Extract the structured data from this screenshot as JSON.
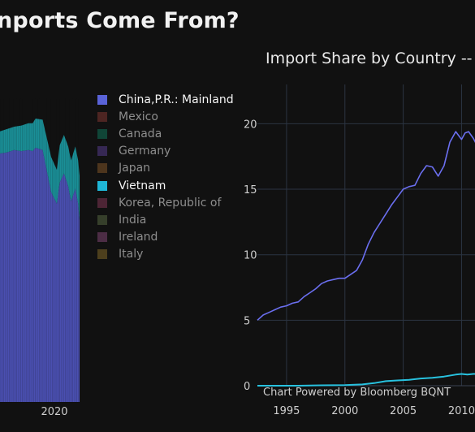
{
  "header": {
    "title": "nports Come From?",
    "left_fragment": "",
    "right_chart_title": "Import Share by Country -- L"
  },
  "legend": {
    "items": [
      {
        "label": "China,P.R.: Mainland",
        "color": "#5a63d8",
        "active": true
      },
      {
        "label": "Mexico",
        "color": "#8a3a33",
        "active": false
      },
      {
        "label": "Canada",
        "color": "#0f7a5e",
        "active": false
      },
      {
        "label": "Germany",
        "color": "#5b3f98",
        "active": false
      },
      {
        "label": "Japan",
        "color": "#8a5a2a",
        "active": false
      },
      {
        "label": "Vietnam",
        "color": "#1fb6d6",
        "active": true
      },
      {
        "label": "Korea, Republic of",
        "color": "#8a3a5a",
        "active": false
      },
      {
        "label": "India",
        "color": "#5c6e45",
        "active": false
      },
      {
        "label": "Ireland",
        "color": "#874a7a",
        "active": false
      },
      {
        "label": "Italy",
        "color": "#8a6e2a",
        "active": false
      }
    ]
  },
  "footer": {
    "credit": "Chart Powered by Bloomberg BQNT"
  },
  "chart_data": [
    {
      "type": "area",
      "stacking": "stacked",
      "x_ticks": [
        "2020"
      ],
      "series": [
        {
          "name": "China,P.R.: Mainland",
          "color": "#4a4fb0",
          "x": [
            2016.0,
            2016.5,
            2017.0,
            2017.5,
            2018.0,
            2018.3,
            2018.5,
            2019.0,
            2019.3,
            2019.6,
            2020.0,
            2020.2,
            2020.5,
            2020.8,
            2021.0,
            2021.3,
            2021.5,
            2021.6
          ],
          "values": [
            21.3,
            21.4,
            21.6,
            21.5,
            21.6,
            21.5,
            21.8,
            21.6,
            19.8,
            18.0,
            17.0,
            18.8,
            19.6,
            18.5,
            17.2,
            18.3,
            17.0,
            15.6
          ]
        },
        {
          "name": "Vietnam",
          "color": "#1a8f97",
          "x": [
            2016.0,
            2016.5,
            2017.0,
            2017.5,
            2018.0,
            2018.3,
            2018.5,
            2019.0,
            2019.3,
            2019.6,
            2020.0,
            2020.2,
            2020.5,
            2020.8,
            2021.0,
            2021.3,
            2021.5,
            2021.6
          ],
          "values": [
            1.9,
            2.0,
            2.0,
            2.2,
            2.3,
            2.4,
            2.5,
            2.6,
            2.8,
            3.0,
            2.9,
            3.2,
            3.3,
            3.4,
            3.5,
            3.6,
            3.7,
            3.8
          ]
        }
      ]
    },
    {
      "type": "line",
      "title": "Import Share by Country -- L",
      "xlim": [
        1992.5,
        2011.5
      ],
      "ylim": [
        0,
        23
      ],
      "x_ticks": [
        1995,
        2000,
        2005,
        2010
      ],
      "y_ticks": [
        0,
        5,
        10,
        15,
        20
      ],
      "grid": true,
      "series": [
        {
          "name": "China,P.R.: Mainland",
          "color": "#6b6ff0",
          "x": [
            1992.5,
            1993.0,
            1993.5,
            1994.0,
            1994.5,
            1995.0,
            1995.5,
            1996.0,
            1996.5,
            1997.0,
            1997.5,
            1998.0,
            1998.5,
            1999.0,
            1999.5,
            2000.0,
            2000.5,
            2001.0,
            2001.5,
            2002.0,
            2002.5,
            2003.0,
            2003.5,
            2004.0,
            2004.5,
            2005.0,
            2005.5,
            2006.0,
            2006.5,
            2007.0,
            2007.5,
            2008.0,
            2008.5,
            2009.0,
            2009.5,
            2010.0,
            2010.3,
            2010.6,
            2011.0,
            2011.3,
            2011.5
          ],
          "values": [
            5.0,
            5.4,
            5.6,
            5.8,
            6.0,
            6.1,
            6.3,
            6.4,
            6.8,
            7.1,
            7.4,
            7.8,
            8.0,
            8.1,
            8.2,
            8.2,
            8.5,
            8.8,
            9.6,
            10.8,
            11.7,
            12.4,
            13.1,
            13.8,
            14.4,
            15.0,
            15.2,
            15.3,
            16.2,
            16.8,
            16.7,
            16.0,
            16.8,
            18.6,
            19.4,
            18.8,
            19.3,
            19.4,
            18.9,
            18.4,
            18.5
          ]
        },
        {
          "name": "Vietnam",
          "color": "#28c2df",
          "x": [
            1992.5,
            1994.0,
            1996.0,
            1998.0,
            2000.0,
            2001.5,
            2002.5,
            2003.5,
            2004.5,
            2005.5,
            2006.5,
            2007.5,
            2008.5,
            2009.5,
            2010.0,
            2010.5,
            2011.0,
            2011.5
          ],
          "values": [
            0.0,
            0.0,
            0.0,
            0.03,
            0.05,
            0.1,
            0.2,
            0.35,
            0.4,
            0.45,
            0.55,
            0.6,
            0.7,
            0.85,
            0.9,
            0.85,
            0.9,
            0.9
          ]
        }
      ]
    }
  ]
}
